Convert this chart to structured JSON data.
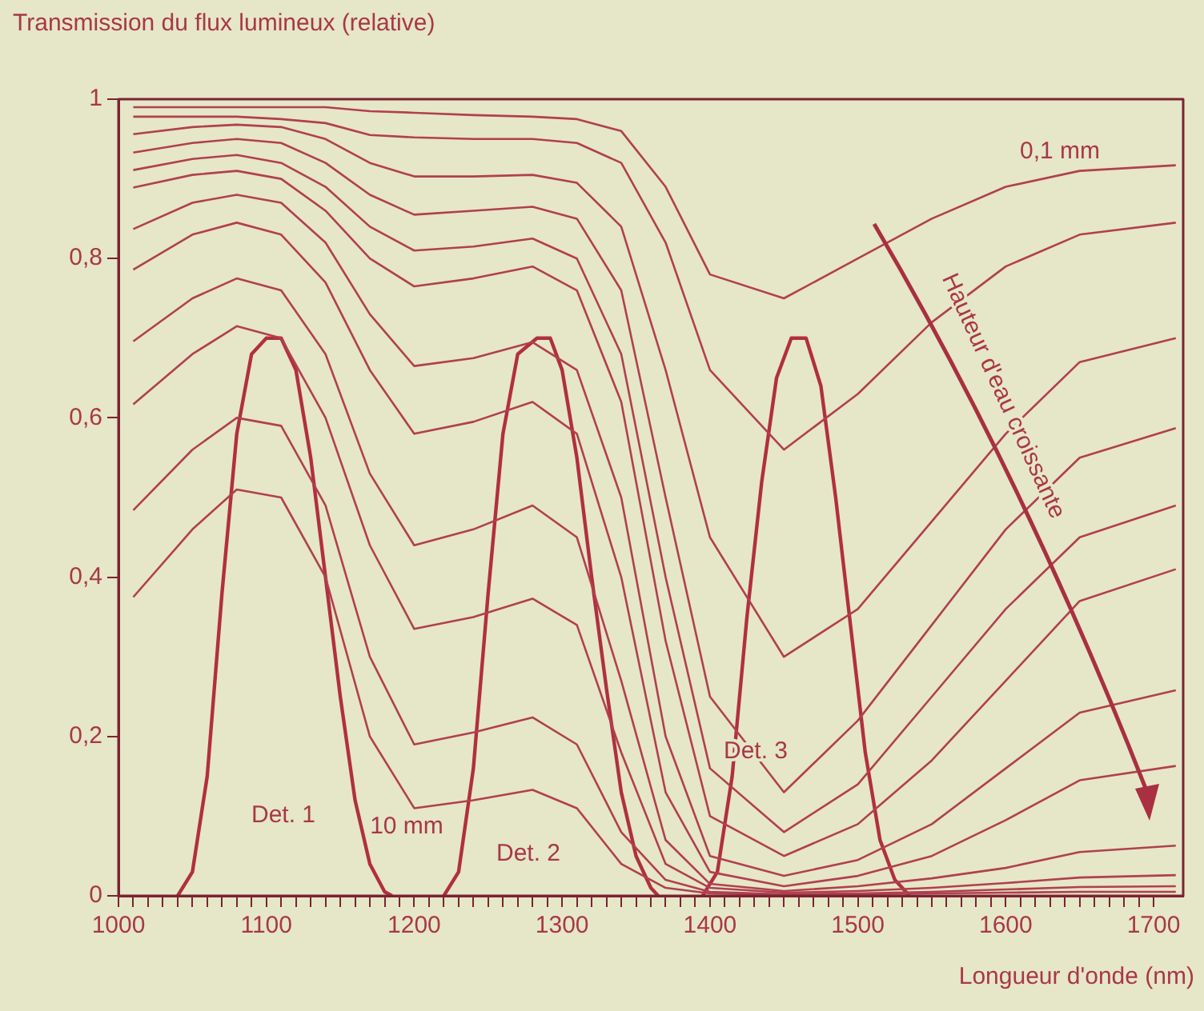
{
  "chart_data": {
    "type": "line",
    "ylabel": "Transmission du flux lumineux (relative)",
    "xlabel": "Longueur d'onde (nm)",
    "xlim": [
      1000,
      1720
    ],
    "ylim": [
      0,
      1
    ],
    "xticks": [
      1000,
      {
        "value": 1010,
        "label": null
      },
      {
        "value": 1020,
        "label": null
      },
      {
        "value": 1030,
        "label": null
      },
      {
        "value": 1040,
        "label": null
      },
      {
        "value": 1050,
        "label": null
      },
      {
        "value": 1060,
        "label": null
      },
      {
        "value": 1070,
        "label": null
      },
      {
        "value": 1080,
        "label": null
      },
      {
        "value": 1090,
        "label": null
      },
      1100,
      {
        "value": 1110,
        "label": null
      },
      {
        "value": 1120,
        "label": null
      },
      {
        "value": 1130,
        "label": null
      },
      {
        "value": 1140,
        "label": null
      },
      {
        "value": 1150,
        "label": null
      },
      {
        "value": 1160,
        "label": null
      },
      {
        "value": 1170,
        "label": null
      },
      {
        "value": 1180,
        "label": null
      },
      {
        "value": 1190,
        "label": null
      },
      1200,
      {
        "value": 1210,
        "label": null
      },
      {
        "value": 1220,
        "label": null
      },
      {
        "value": 1230,
        "label": null
      },
      {
        "value": 1240,
        "label": null
      },
      {
        "value": 1250,
        "label": null
      },
      {
        "value": 1260,
        "label": null
      },
      {
        "value": 1270,
        "label": null
      },
      {
        "value": 1280,
        "label": null
      },
      {
        "value": 1290,
        "label": null
      },
      1300,
      {
        "value": 1310,
        "label": null
      },
      {
        "value": 1320,
        "label": null
      },
      {
        "value": 1330,
        "label": null
      },
      {
        "value": 1340,
        "label": null
      },
      {
        "value": 1350,
        "label": null
      },
      {
        "value": 1360,
        "label": null
      },
      {
        "value": 1370,
        "label": null
      },
      {
        "value": 1380,
        "label": null
      },
      {
        "value": 1390,
        "label": null
      },
      1400,
      {
        "value": 1410,
        "label": null
      },
      {
        "value": 1420,
        "label": null
      },
      {
        "value": 1430,
        "label": null
      },
      {
        "value": 1440,
        "label": null
      },
      {
        "value": 1450,
        "label": null
      },
      {
        "value": 1460,
        "label": null
      },
      {
        "value": 1470,
        "label": null
      },
      {
        "value": 1480,
        "label": null
      },
      {
        "value": 1490,
        "label": null
      },
      1500,
      {
        "value": 1510,
        "label": null
      },
      {
        "value": 1520,
        "label": null
      },
      {
        "value": 1530,
        "label": null
      },
      {
        "value": 1540,
        "label": null
      },
      {
        "value": 1550,
        "label": null
      },
      {
        "value": 1560,
        "label": null
      },
      {
        "value": 1570,
        "label": null
      },
      {
        "value": 1580,
        "label": null
      },
      {
        "value": 1590,
        "label": null
      },
      1600,
      {
        "value": 1610,
        "label": null
      },
      {
        "value": 1620,
        "label": null
      },
      {
        "value": 1630,
        "label": null
      },
      {
        "value": 1640,
        "label": null
      },
      {
        "value": 1650,
        "label": null
      },
      {
        "value": 1660,
        "label": null
      },
      {
        "value": 1670,
        "label": null
      },
      {
        "value": 1680,
        "label": null
      },
      {
        "value": 1690,
        "label": null
      },
      1700
    ],
    "yticks": [
      0,
      {
        "value": 0.2,
        "label": "0,2"
      },
      {
        "value": 0.4,
        "label": "0,4"
      },
      {
        "value": 0.6,
        "label": "0,6"
      },
      {
        "value": 0.8,
        "label": "0,8"
      },
      1
    ],
    "grid": false,
    "legend": false,
    "marker": "none",
    "line_style": "solid",
    "x": [
      1010,
      1050,
      1080,
      1110,
      1140,
      1170,
      1200,
      1240,
      1280,
      1310,
      1340,
      1370,
      1400,
      1450,
      1500,
      1550,
      1600,
      1650,
      1715
    ],
    "series": [
      {
        "color": "#b0404f",
        "values": [
          0.99,
          0.99,
          0.99,
          0.99,
          0.99,
          0.985,
          0.983,
          0.98,
          0.978,
          0.975,
          0.96,
          0.89,
          0.78,
          0.75,
          0.8,
          0.85,
          0.89,
          0.91,
          0.917
        ]
      },
      {
        "color": "#b0404f",
        "values": [
          0.978,
          0.978,
          0.978,
          0.975,
          0.97,
          0.955,
          0.952,
          0.95,
          0.95,
          0.945,
          0.92,
          0.82,
          0.66,
          0.56,
          0.63,
          0.72,
          0.79,
          0.83,
          0.845
        ]
      },
      {
        "color": "#b0404f",
        "values": [
          0.956,
          0.965,
          0.968,
          0.965,
          0.95,
          0.92,
          0.903,
          0.903,
          0.905,
          0.895,
          0.84,
          0.66,
          0.45,
          0.3,
          0.36,
          0.47,
          0.58,
          0.67,
          0.7
        ]
      },
      {
        "color": "#b0404f",
        "values": [
          0.933,
          0.945,
          0.95,
          0.945,
          0.92,
          0.88,
          0.855,
          0.86,
          0.865,
          0.85,
          0.76,
          0.5,
          0.25,
          0.13,
          0.22,
          0.34,
          0.46,
          0.55,
          0.587
        ]
      },
      {
        "color": "#b0404f",
        "values": [
          0.911,
          0.925,
          0.93,
          0.92,
          0.89,
          0.84,
          0.81,
          0.815,
          0.825,
          0.8,
          0.68,
          0.4,
          0.16,
          0.08,
          0.14,
          0.25,
          0.36,
          0.45,
          0.49
        ]
      },
      {
        "color": "#b0404f",
        "values": [
          0.889,
          0.905,
          0.91,
          0.9,
          0.86,
          0.8,
          0.765,
          0.775,
          0.79,
          0.76,
          0.62,
          0.32,
          0.1,
          0.05,
          0.09,
          0.17,
          0.27,
          0.37,
          0.41
        ]
      },
      {
        "color": "#b0404f",
        "values": [
          0.837,
          0.87,
          0.88,
          0.87,
          0.82,
          0.73,
          0.665,
          0.675,
          0.695,
          0.66,
          0.5,
          0.2,
          0.05,
          0.025,
          0.045,
          0.09,
          0.16,
          0.23,
          0.258
        ]
      },
      {
        "color": "#b0404f",
        "values": [
          0.786,
          0.83,
          0.845,
          0.83,
          0.77,
          0.66,
          0.58,
          0.595,
          0.62,
          0.58,
          0.4,
          0.13,
          0.03,
          0.012,
          0.025,
          0.05,
          0.095,
          0.145,
          0.163
        ]
      },
      {
        "color": "#b0404f",
        "values": [
          0.696,
          0.75,
          0.775,
          0.76,
          0.68,
          0.53,
          0.44,
          0.46,
          0.49,
          0.45,
          0.27,
          0.07,
          0.015,
          0.006,
          0.012,
          0.022,
          0.035,
          0.055,
          0.063
        ]
      },
      {
        "color": "#b0404f",
        "values": [
          0.617,
          0.68,
          0.715,
          0.7,
          0.6,
          0.44,
          0.335,
          0.35,
          0.373,
          0.34,
          0.18,
          0.04,
          0.01,
          0.004,
          0.006,
          0.01,
          0.016,
          0.023,
          0.026
        ]
      },
      {
        "color": "#b0404f",
        "values": [
          0.484,
          0.56,
          0.6,
          0.59,
          0.49,
          0.3,
          0.19,
          0.205,
          0.224,
          0.19,
          0.08,
          0.02,
          0.005,
          0.002,
          0.003,
          0.005,
          0.008,
          0.011,
          0.012
        ]
      },
      {
        "color": "#b0404f",
        "values": [
          0.375,
          0.46,
          0.51,
          0.5,
          0.4,
          0.2,
          0.11,
          0.12,
          0.133,
          0.11,
          0.04,
          0.01,
          0.003,
          0.001,
          0.002,
          0.003,
          0.004,
          0.005,
          0.005
        ]
      },
      {
        "color": "#b0303f",
        "x": [
          1040,
          1050,
          1060,
          1070,
          1080,
          1090,
          1100,
          1110,
          1120,
          1130,
          1140,
          1150,
          1160,
          1170,
          1180,
          1185
        ],
        "values": [
          0,
          0.03,
          0.15,
          0.38,
          0.58,
          0.68,
          0.7,
          0.7,
          0.66,
          0.55,
          0.4,
          0.25,
          0.12,
          0.04,
          0.005,
          0
        ]
      },
      {
        "color": "#b0303f",
        "x": [
          1220,
          1230,
          1240,
          1250,
          1260,
          1270,
          1283,
          1292,
          1300,
          1310,
          1320,
          1330,
          1340,
          1350,
          1360,
          1365
        ],
        "values": [
          0,
          0.03,
          0.16,
          0.38,
          0.58,
          0.68,
          0.7,
          0.7,
          0.66,
          0.55,
          0.4,
          0.26,
          0.13,
          0.05,
          0.01,
          0
        ]
      },
      {
        "color": "#b0303f",
        "x": [
          1395,
          1405,
          1415,
          1425,
          1435,
          1445,
          1455,
          1465,
          1475,
          1485,
          1495,
          1505,
          1515,
          1525,
          1535
        ],
        "values": [
          0,
          0.03,
          0.15,
          0.35,
          0.52,
          0.65,
          0.7,
          0.7,
          0.64,
          0.5,
          0.34,
          0.18,
          0.07,
          0.02,
          0
        ]
      }
    ],
    "annotations": [
      "0,1 mm",
      "10 mm",
      "Det. 1",
      "Det. 2",
      "Det. 3",
      "Hauteur d'eau croissante"
    ]
  }
}
